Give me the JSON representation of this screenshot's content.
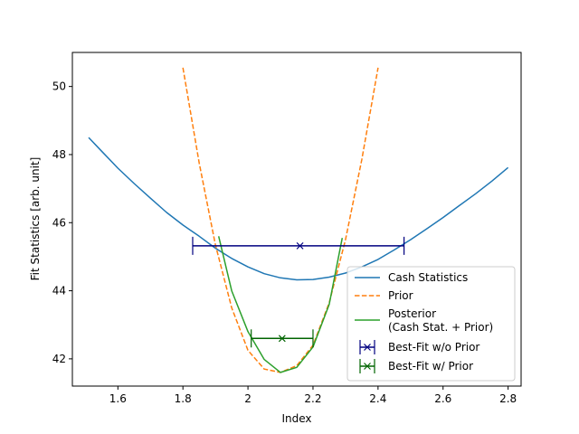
{
  "chart_data": {
    "type": "line",
    "title": "",
    "xlabel": "Index",
    "ylabel": "Fit Statistics [arb. unit]",
    "xlim": [
      1.46,
      2.84
    ],
    "ylim": [
      41.2,
      51.0
    ],
    "xticks": [
      1.6,
      1.8,
      2.0,
      2.2,
      2.4,
      2.6,
      2.8
    ],
    "yticks": [
      42,
      44,
      46,
      48,
      50
    ],
    "grid": false,
    "legend_position": "bottom-right",
    "series": [
      {
        "name": "Cash Statistics",
        "style": "solid",
        "color": "#1f77b4",
        "x": [
          1.51,
          1.55,
          1.6,
          1.65,
          1.7,
          1.75,
          1.8,
          1.85,
          1.9,
          1.95,
          2.0,
          2.05,
          2.1,
          2.15,
          2.2,
          2.25,
          2.3,
          2.35,
          2.4,
          2.45,
          2.5,
          2.55,
          2.6,
          2.65,
          2.7,
          2.75,
          2.8
        ],
        "y": [
          48.5,
          48.1,
          47.6,
          47.15,
          46.72,
          46.3,
          45.93,
          45.6,
          45.25,
          44.95,
          44.7,
          44.5,
          44.38,
          44.32,
          44.33,
          44.4,
          44.52,
          44.7,
          44.92,
          45.2,
          45.5,
          45.82,
          46.15,
          46.5,
          46.85,
          47.22,
          47.62
        ]
      },
      {
        "name": "Prior",
        "style": "dashed",
        "color": "#ff7f0e",
        "x": [
          1.8,
          1.85,
          1.9,
          1.95,
          2.0,
          2.05,
          2.1,
          2.15,
          2.2,
          2.25,
          2.3,
          2.35,
          2.4
        ],
        "y": [
          50.55,
          47.75,
          45.35,
          43.5,
          42.25,
          41.7,
          41.6,
          41.8,
          42.4,
          43.65,
          45.5,
          47.85,
          50.55
        ]
      },
      {
        "name": "Posterior\n(Cash Stat. + Prior)",
        "style": "solid",
        "color": "#2ca02c",
        "x": [
          1.91,
          1.95,
          2.0,
          2.05,
          2.1,
          2.15,
          2.2,
          2.25,
          2.29
        ],
        "y": [
          45.6,
          44.0,
          42.8,
          41.98,
          41.6,
          41.75,
          42.35,
          43.6,
          45.55
        ]
      }
    ],
    "errorbars": [
      {
        "name": "Best-Fit w/o Prior",
        "color": "#000080",
        "x": 2.16,
        "y": 45.32,
        "xerr": [
          0.33,
          0.32
        ]
      },
      {
        "name": "Best-Fit w/ Prior",
        "color": "#006400",
        "x": 2.105,
        "y": 42.6,
        "xerr": [
          0.095,
          0.095
        ]
      }
    ]
  }
}
